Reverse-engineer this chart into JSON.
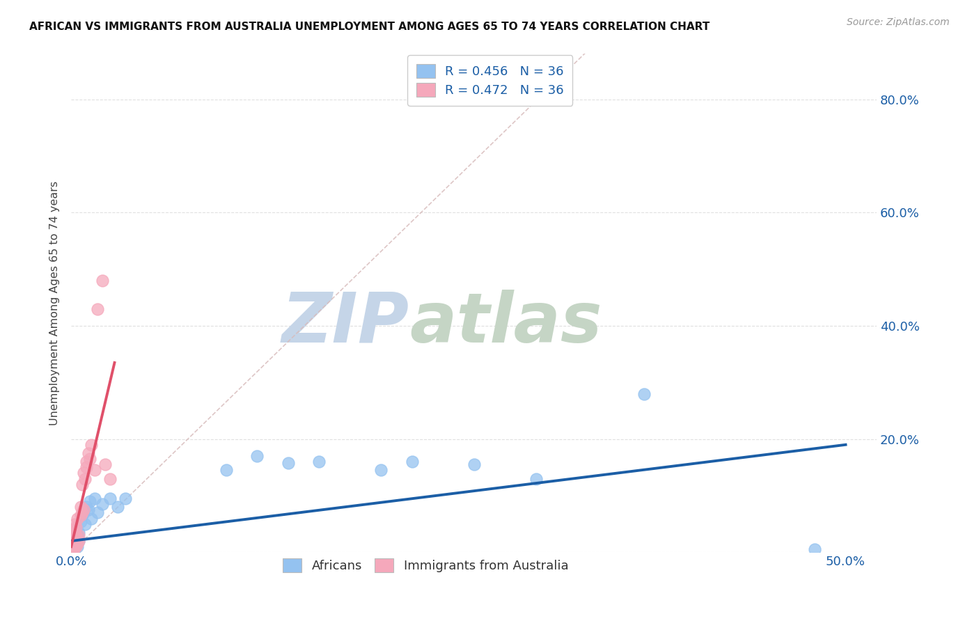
{
  "title": "AFRICAN VS IMMIGRANTS FROM AUSTRALIA UNEMPLOYMENT AMONG AGES 65 TO 74 YEARS CORRELATION CHART",
  "source": "Source: ZipAtlas.com",
  "ylabel": "Unemployment Among Ages 65 to 74 years",
  "xlim": [
    0.0,
    0.52
  ],
  "ylim": [
    0.0,
    0.88
  ],
  "africans_x": [
    0.001,
    0.001,
    0.001,
    0.002,
    0.002,
    0.002,
    0.003,
    0.003,
    0.004,
    0.004,
    0.005,
    0.005,
    0.006,
    0.007,
    0.008,
    0.009,
    0.01,
    0.011,
    0.012,
    0.013,
    0.015,
    0.017,
    0.02,
    0.025,
    0.03,
    0.035,
    0.1,
    0.12,
    0.14,
    0.16,
    0.2,
    0.22,
    0.26,
    0.3,
    0.37,
    0.48
  ],
  "africans_y": [
    0.03,
    0.02,
    0.015,
    0.025,
    0.01,
    0.005,
    0.04,
    0.015,
    0.03,
    0.01,
    0.02,
    0.035,
    0.055,
    0.065,
    0.07,
    0.05,
    0.08,
    0.075,
    0.09,
    0.06,
    0.095,
    0.07,
    0.085,
    0.095,
    0.08,
    0.095,
    0.145,
    0.17,
    0.158,
    0.16,
    0.145,
    0.16,
    0.155,
    0.13,
    0.28,
    0.005
  ],
  "australia_x": [
    0.001,
    0.001,
    0.001,
    0.001,
    0.001,
    0.002,
    0.002,
    0.002,
    0.002,
    0.002,
    0.003,
    0.003,
    0.003,
    0.003,
    0.004,
    0.004,
    0.004,
    0.005,
    0.005,
    0.006,
    0.006,
    0.007,
    0.007,
    0.008,
    0.008,
    0.009,
    0.01,
    0.01,
    0.011,
    0.012,
    0.013,
    0.015,
    0.017,
    0.02,
    0.022,
    0.025
  ],
  "australia_y": [
    0.005,
    0.01,
    0.015,
    0.025,
    0.04,
    0.008,
    0.015,
    0.02,
    0.035,
    0.05,
    0.01,
    0.02,
    0.03,
    0.045,
    0.015,
    0.025,
    0.06,
    0.03,
    0.02,
    0.065,
    0.08,
    0.07,
    0.12,
    0.075,
    0.14,
    0.13,
    0.16,
    0.15,
    0.175,
    0.165,
    0.19,
    0.145,
    0.43,
    0.48,
    0.155,
    0.13
  ],
  "africans_color": "#94C2F0",
  "australia_color": "#F5A8BB",
  "africans_R": 0.456,
  "africans_N": 36,
  "australia_R": 0.472,
  "australia_N": 36,
  "trend_blue_color": "#1B5EA6",
  "trend_pink_color": "#E0506A",
  "trend_dashed_color": "#D8BCBC",
  "watermark_zip": "ZIP",
  "watermark_atlas": "atlas",
  "watermark_color_zip": "#C5D5E8",
  "watermark_color_atlas": "#C5D5C5",
  "legend_color": "#1B5EA6",
  "background_color": "#FFFFFF",
  "grid_color": "#DDDDDD",
  "ytick_color": "#1B5EA6",
  "xtick_color": "#1B5EA6"
}
